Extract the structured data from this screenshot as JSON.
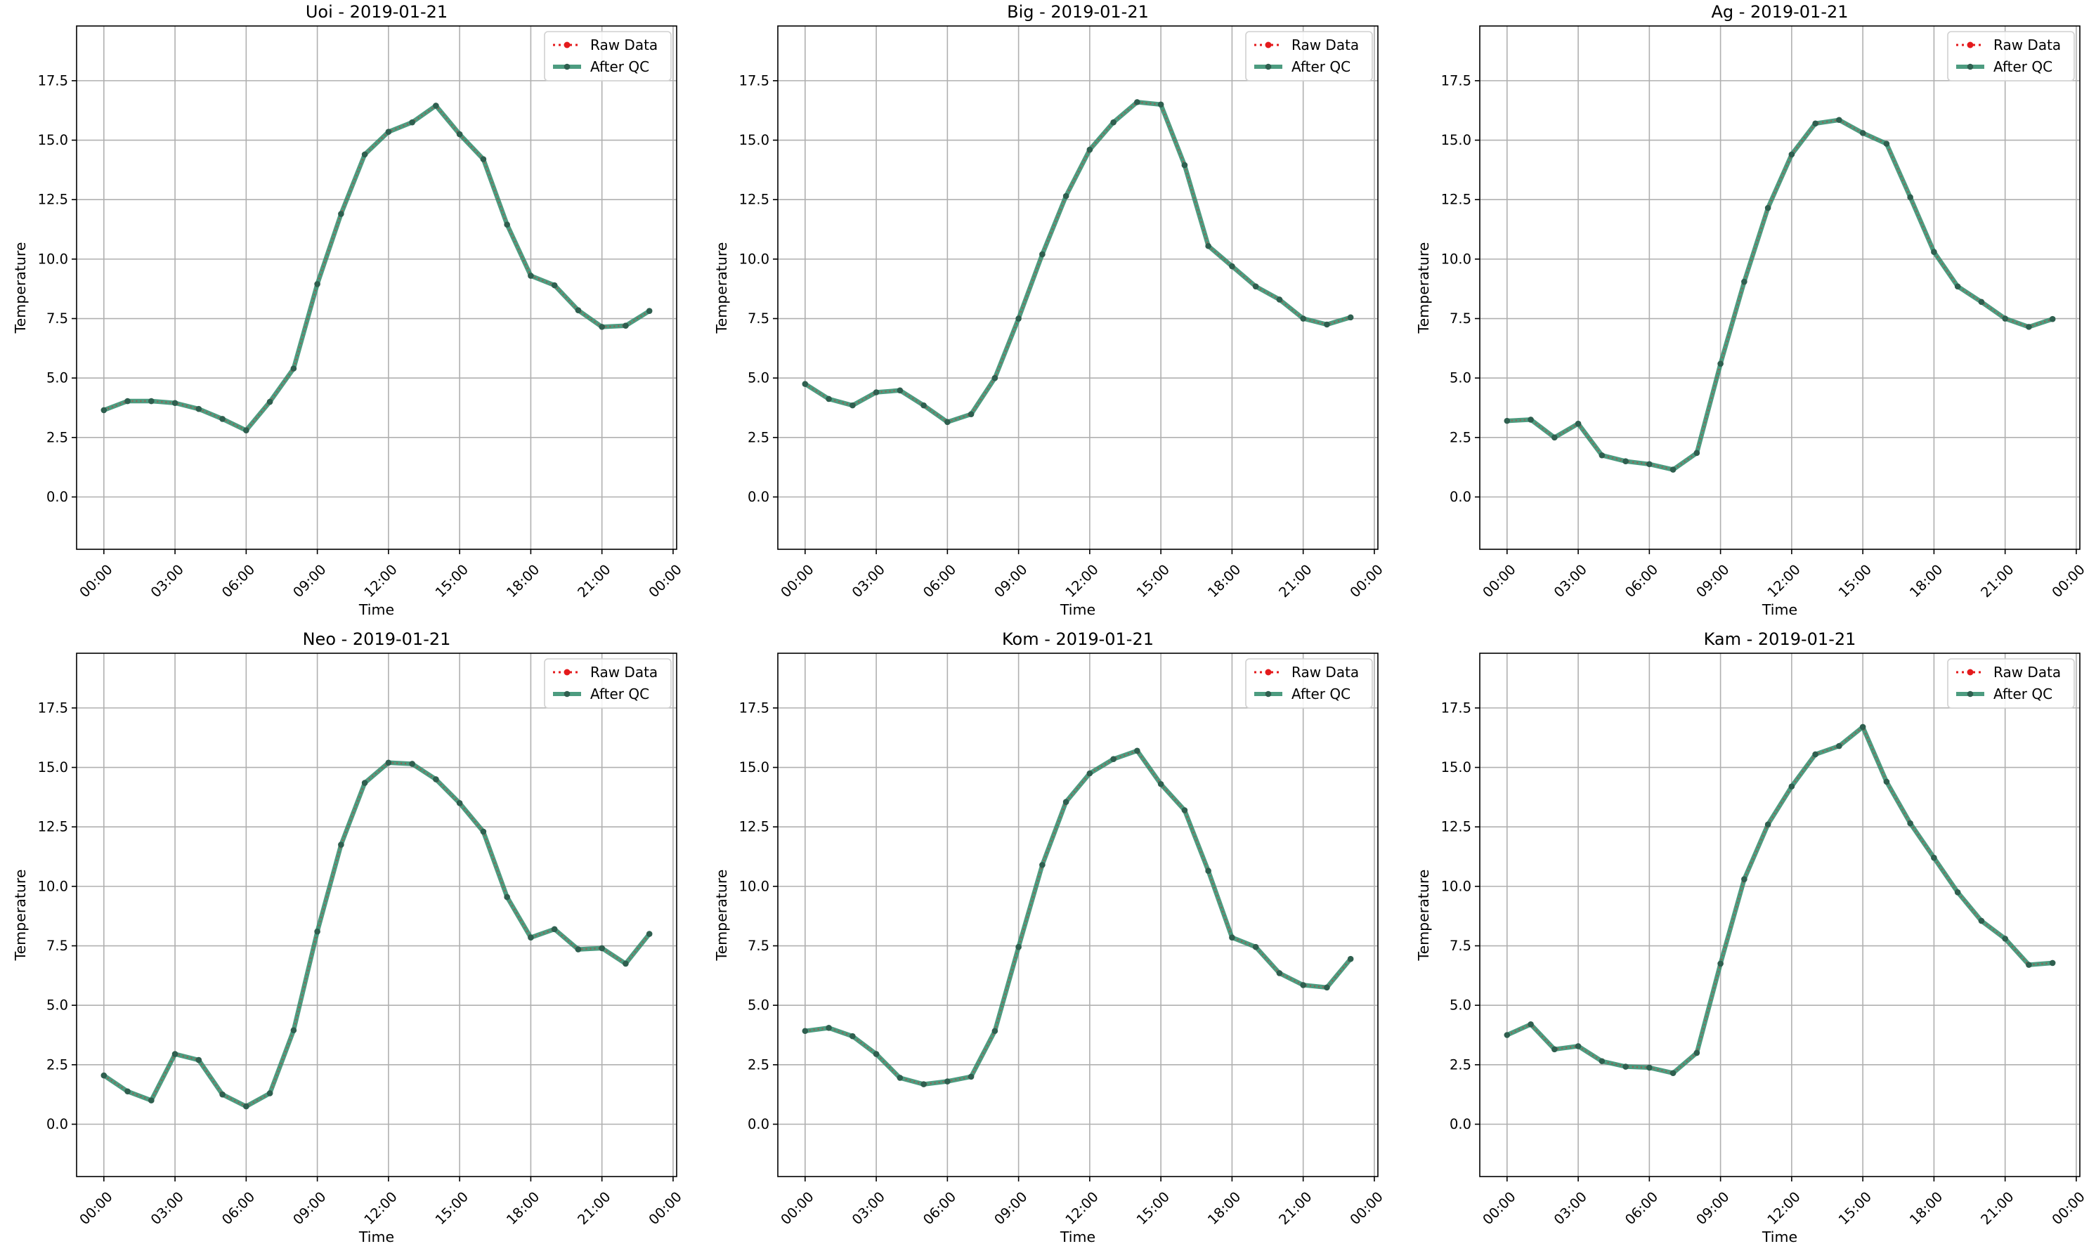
{
  "figure": {
    "colors": {
      "raw": "#e41a1c",
      "qc": "#2e8b6a",
      "grid": "#b0b0b0",
      "marker": "#2f5f4f"
    }
  },
  "chart_data": [
    {
      "type": "line",
      "title": "Uoi - 2019-01-21",
      "xlabel": "Time",
      "ylabel": "Temperature",
      "xlim": [
        -1.15,
        24.15
      ],
      "ylim": [
        -2.2,
        19.8
      ],
      "x_ticks": [
        0,
        3,
        6,
        9,
        12,
        15,
        18,
        21,
        24
      ],
      "x_tick_labels": [
        "00:00",
        "03:00",
        "06:00",
        "09:00",
        "12:00",
        "15:00",
        "18:00",
        "21:00",
        "00:00"
      ],
      "y_ticks": [
        0,
        2.5,
        5,
        7.5,
        10,
        12.5,
        15,
        17.5
      ],
      "y_tick_labels": [
        "0.0",
        "2.5",
        "5.0",
        "7.5",
        "10.0",
        "12.5",
        "15.0",
        "17.5"
      ],
      "grid": true,
      "legend": "top-right",
      "x": [
        0,
        1,
        2,
        3,
        4,
        5,
        6,
        7,
        8,
        9,
        10,
        11,
        12,
        13,
        14,
        15,
        16,
        17,
        18,
        19,
        20,
        21,
        22,
        23
      ],
      "series": [
        {
          "name": "Raw Data",
          "style": "dotted-red",
          "values": [
            3.65,
            4.03,
            4.03,
            3.95,
            3.7,
            3.28,
            2.8,
            4.0,
            5.4,
            8.95,
            11.9,
            14.4,
            15.35,
            15.75,
            16.45,
            15.25,
            14.2,
            11.45,
            9.3,
            8.9,
            7.85,
            7.15,
            7.2,
            7.82
          ]
        },
        {
          "name": "After QC",
          "style": "solid-green",
          "values": [
            3.65,
            4.03,
            4.03,
            3.95,
            3.7,
            3.28,
            2.8,
            4.0,
            5.4,
            8.95,
            11.9,
            14.4,
            15.35,
            15.75,
            16.45,
            15.25,
            14.2,
            11.45,
            9.3,
            8.9,
            7.85,
            7.15,
            7.2,
            7.82
          ]
        }
      ]
    },
    {
      "type": "line",
      "title": "Big - 2019-01-21",
      "xlabel": "Time",
      "ylabel": "Temperature",
      "xlim": [
        -1.15,
        24.15
      ],
      "ylim": [
        -2.2,
        19.8
      ],
      "x_ticks": [
        0,
        3,
        6,
        9,
        12,
        15,
        18,
        21,
        24
      ],
      "x_tick_labels": [
        "00:00",
        "03:00",
        "06:00",
        "09:00",
        "12:00",
        "15:00",
        "18:00",
        "21:00",
        "00:00"
      ],
      "y_ticks": [
        0,
        2.5,
        5,
        7.5,
        10,
        12.5,
        15,
        17.5
      ],
      "y_tick_labels": [
        "0.0",
        "2.5",
        "5.0",
        "7.5",
        "10.0",
        "12.5",
        "15.0",
        "17.5"
      ],
      "grid": true,
      "legend": "top-right",
      "x": [
        0,
        1,
        2,
        3,
        4,
        5,
        6,
        7,
        8,
        9,
        10,
        11,
        12,
        13,
        14,
        15,
        16,
        17,
        18,
        19,
        20,
        21,
        22,
        23
      ],
      "series": [
        {
          "name": "Raw Data",
          "style": "dotted-red",
          "values": [
            4.75,
            4.12,
            3.85,
            4.4,
            4.48,
            3.85,
            3.15,
            3.48,
            5.0,
            7.5,
            10.2,
            12.65,
            14.6,
            15.75,
            16.6,
            16.5,
            13.95,
            10.55,
            9.7,
            8.85,
            8.3,
            7.5,
            7.25,
            7.55
          ]
        },
        {
          "name": "After QC",
          "style": "solid-green",
          "values": [
            4.75,
            4.12,
            3.85,
            4.4,
            4.48,
            3.85,
            3.15,
            3.48,
            5.0,
            7.5,
            10.2,
            12.65,
            14.6,
            15.75,
            16.6,
            16.5,
            13.95,
            10.55,
            9.7,
            8.85,
            8.3,
            7.5,
            7.25,
            7.55
          ]
        }
      ]
    },
    {
      "type": "line",
      "title": "Ag - 2019-01-21",
      "xlabel": "Time",
      "ylabel": "Temperature",
      "xlim": [
        -1.15,
        24.15
      ],
      "ylim": [
        -2.2,
        19.8
      ],
      "x_ticks": [
        0,
        3,
        6,
        9,
        12,
        15,
        18,
        21,
        24
      ],
      "x_tick_labels": [
        "00:00",
        "03:00",
        "06:00",
        "09:00",
        "12:00",
        "15:00",
        "18:00",
        "21:00",
        "00:00"
      ],
      "y_ticks": [
        0,
        2.5,
        5,
        7.5,
        10,
        12.5,
        15,
        17.5
      ],
      "y_tick_labels": [
        "0.0",
        "2.5",
        "5.0",
        "7.5",
        "10.0",
        "12.5",
        "15.0",
        "17.5"
      ],
      "grid": true,
      "legend": "top-right",
      "x": [
        0,
        1,
        2,
        3,
        4,
        5,
        6,
        7,
        8,
        9,
        10,
        11,
        12,
        13,
        14,
        15,
        16,
        17,
        18,
        19,
        20,
        21,
        22,
        23
      ],
      "series": [
        {
          "name": "Raw Data",
          "style": "dotted-red",
          "values": [
            3.2,
            3.25,
            2.5,
            3.08,
            1.75,
            1.5,
            1.38,
            1.15,
            1.85,
            5.6,
            9.05,
            12.15,
            14.4,
            15.7,
            15.85,
            15.3,
            14.85,
            12.6,
            10.3,
            8.85,
            8.2,
            7.5,
            7.15,
            7.48
          ]
        },
        {
          "name": "After QC",
          "style": "solid-green",
          "values": [
            3.2,
            3.25,
            2.5,
            3.08,
            1.75,
            1.5,
            1.38,
            1.15,
            1.85,
            5.6,
            9.05,
            12.15,
            14.4,
            15.7,
            15.85,
            15.3,
            14.85,
            12.6,
            10.3,
            8.85,
            8.2,
            7.5,
            7.15,
            7.48
          ]
        }
      ]
    },
    {
      "type": "line",
      "title": "Neo - 2019-01-21",
      "xlabel": "Time",
      "ylabel": "Temperature",
      "xlim": [
        -1.15,
        24.15
      ],
      "ylim": [
        -2.2,
        19.8
      ],
      "x_ticks": [
        0,
        3,
        6,
        9,
        12,
        15,
        18,
        21,
        24
      ],
      "x_tick_labels": [
        "00:00",
        "03:00",
        "06:00",
        "09:00",
        "12:00",
        "15:00",
        "18:00",
        "21:00",
        "00:00"
      ],
      "y_ticks": [
        0,
        2.5,
        5,
        7.5,
        10,
        12.5,
        15,
        17.5
      ],
      "y_tick_labels": [
        "0.0",
        "2.5",
        "5.0",
        "7.5",
        "10.0",
        "12.5",
        "15.0",
        "17.5"
      ],
      "grid": true,
      "legend": "top-right",
      "x": [
        0,
        1,
        2,
        3,
        4,
        5,
        6,
        7,
        8,
        9,
        10,
        11,
        12,
        13,
        14,
        15,
        16,
        17,
        18,
        19,
        20,
        21,
        22,
        23
      ],
      "series": [
        {
          "name": "Raw Data",
          "style": "dotted-red",
          "values": [
            2.05,
            1.38,
            1.0,
            2.95,
            2.7,
            1.25,
            0.75,
            1.3,
            3.95,
            8.1,
            11.75,
            14.35,
            15.2,
            15.15,
            14.5,
            13.5,
            12.3,
            9.55,
            7.85,
            8.2,
            7.35,
            7.4,
            6.75,
            8.0
          ]
        },
        {
          "name": "After QC",
          "style": "solid-green",
          "values": [
            2.05,
            1.38,
            1.0,
            2.95,
            2.7,
            1.25,
            0.75,
            1.3,
            3.95,
            8.1,
            11.75,
            14.35,
            15.2,
            15.15,
            14.5,
            13.5,
            12.3,
            9.55,
            7.85,
            8.2,
            7.35,
            7.4,
            6.75,
            8.0
          ]
        }
      ]
    },
    {
      "type": "line",
      "title": "Kom - 2019-01-21",
      "xlabel": "Time",
      "ylabel": "Temperature",
      "xlim": [
        -1.15,
        24.15
      ],
      "ylim": [
        -2.2,
        19.8
      ],
      "x_ticks": [
        0,
        3,
        6,
        9,
        12,
        15,
        18,
        21,
        24
      ],
      "x_tick_labels": [
        "00:00",
        "03:00",
        "06:00",
        "09:00",
        "12:00",
        "15:00",
        "18:00",
        "21:00",
        "00:00"
      ],
      "y_ticks": [
        0,
        2.5,
        5,
        7.5,
        10,
        12.5,
        15,
        17.5
      ],
      "y_tick_labels": [
        "0.0",
        "2.5",
        "5.0",
        "7.5",
        "10.0",
        "12.5",
        "15.0",
        "17.5"
      ],
      "grid": true,
      "legend": "top-right",
      "x": [
        0,
        1,
        2,
        3,
        4,
        5,
        6,
        7,
        8,
        9,
        10,
        11,
        12,
        13,
        14,
        15,
        16,
        17,
        18,
        19,
        20,
        21,
        22,
        23
      ],
      "series": [
        {
          "name": "Raw Data",
          "style": "dotted-red",
          "values": [
            3.92,
            4.05,
            3.7,
            2.95,
            1.95,
            1.68,
            1.8,
            2.0,
            3.92,
            7.45,
            10.9,
            13.55,
            14.75,
            15.35,
            15.7,
            14.3,
            13.2,
            10.65,
            7.85,
            7.45,
            6.35,
            5.85,
            5.75,
            6.95
          ]
        },
        {
          "name": "After QC",
          "style": "solid-green",
          "values": [
            3.92,
            4.05,
            3.7,
            2.95,
            1.95,
            1.68,
            1.8,
            2.0,
            3.92,
            7.45,
            10.9,
            13.55,
            14.75,
            15.35,
            15.7,
            14.3,
            13.2,
            10.65,
            7.85,
            7.45,
            6.35,
            5.85,
            5.75,
            6.95
          ]
        }
      ]
    },
    {
      "type": "line",
      "title": "Kam - 2019-01-21",
      "xlabel": "Time",
      "ylabel": "Temperature",
      "xlim": [
        -1.15,
        24.15
      ],
      "ylim": [
        -2.2,
        19.8
      ],
      "x_ticks": [
        0,
        3,
        6,
        9,
        12,
        15,
        18,
        21,
        24
      ],
      "x_tick_labels": [
        "00:00",
        "03:00",
        "06:00",
        "09:00",
        "12:00",
        "15:00",
        "18:00",
        "21:00",
        "00:00"
      ],
      "y_ticks": [
        0,
        2.5,
        5,
        7.5,
        10,
        12.5,
        15,
        17.5
      ],
      "y_tick_labels": [
        "0.0",
        "2.5",
        "5.0",
        "7.5",
        "10.0",
        "12.5",
        "15.0",
        "17.5"
      ],
      "grid": true,
      "legend": "top-right",
      "x": [
        0,
        1,
        2,
        3,
        4,
        5,
        6,
        7,
        8,
        9,
        10,
        11,
        12,
        13,
        14,
        15,
        16,
        17,
        18,
        19,
        20,
        21,
        22,
        23
      ],
      "series": [
        {
          "name": "Raw Data",
          "style": "dotted-red",
          "values": [
            3.75,
            4.2,
            3.15,
            3.28,
            2.65,
            2.42,
            2.38,
            2.15,
            3.0,
            6.75,
            10.3,
            12.6,
            14.2,
            15.55,
            15.9,
            16.7,
            14.4,
            12.65,
            11.2,
            9.75,
            8.55,
            7.8,
            6.7,
            6.78
          ]
        },
        {
          "name": "After QC",
          "style": "solid-green",
          "values": [
            3.75,
            4.2,
            3.15,
            3.28,
            2.65,
            2.42,
            2.38,
            2.15,
            3.0,
            6.75,
            10.3,
            12.6,
            14.2,
            15.55,
            15.9,
            16.7,
            14.4,
            12.65,
            11.2,
            9.75,
            8.55,
            7.8,
            6.7,
            6.78
          ]
        }
      ]
    }
  ]
}
